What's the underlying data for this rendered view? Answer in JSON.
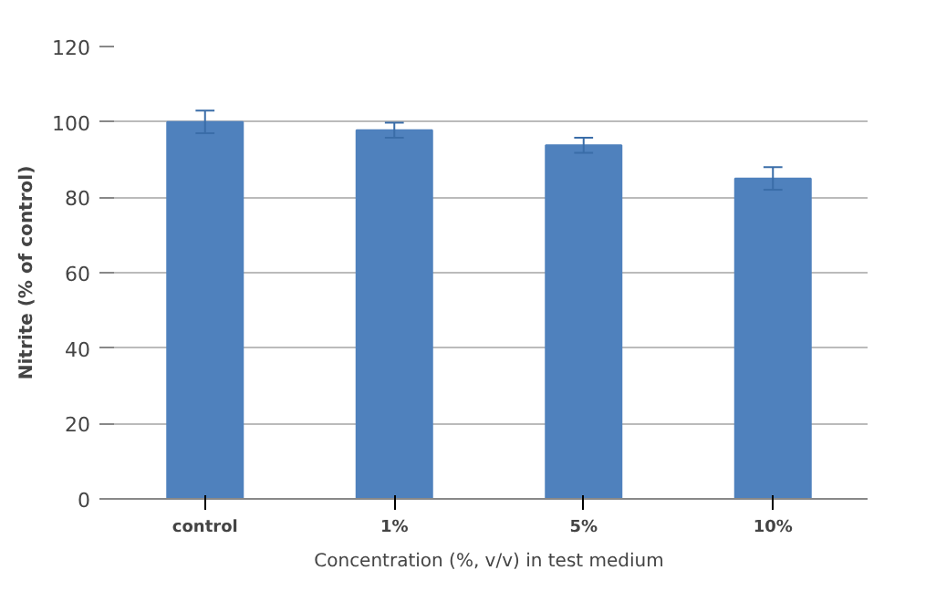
{
  "chart_data": {
    "type": "bar",
    "xlabel": "Concentration (%, v/v) in test medium",
    "ylabel": "Nitrite (% of control)",
    "categories": [
      "control",
      "1%",
      "5%",
      "10%"
    ],
    "values": [
      100,
      97.8,
      93.8,
      85
    ],
    "errors": [
      3,
      2,
      2,
      3
    ],
    "color": "#4f81bd",
    "ylim": [
      0,
      120
    ],
    "yticks": [
      0,
      20,
      40,
      60,
      80,
      100,
      120
    ],
    "grid": "y"
  }
}
